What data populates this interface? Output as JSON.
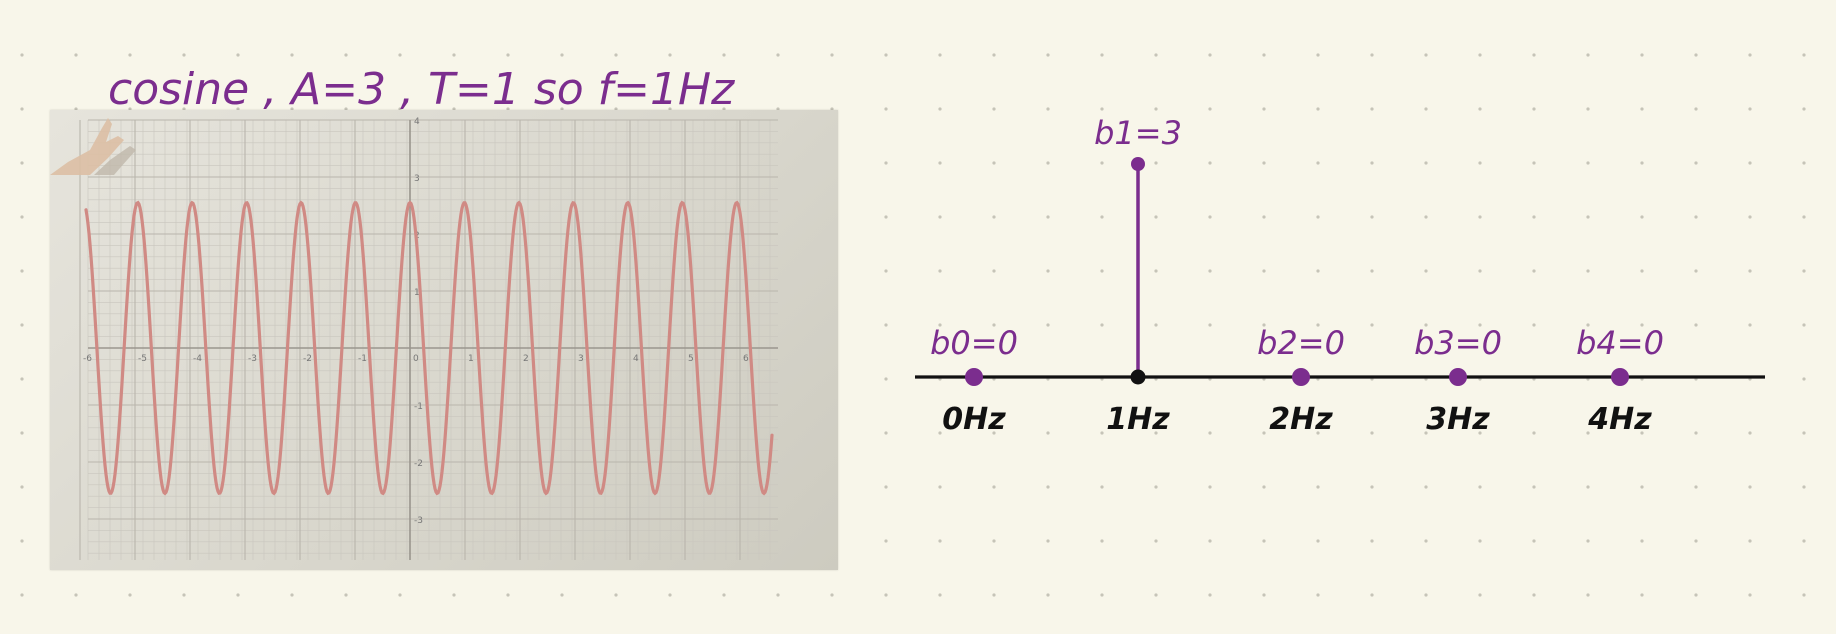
{
  "header_note": {
    "text": "cosine ,  A=3 , T=1  so  f=1Hz"
  },
  "photo": {
    "x_ticks": [
      "-6",
      "-5",
      "-4",
      "-3",
      "-2",
      "-1",
      "0",
      "1",
      "2",
      "3",
      "4",
      "5",
      "6"
    ],
    "y_ticks": [
      "4",
      "3",
      "2",
      "1",
      "-1",
      "-2",
      "-3"
    ],
    "curve_color": "#d08a84"
  },
  "spectrum": {
    "color": "#7b2d8e",
    "axis_color": "#111111",
    "stems": [
      {
        "coef_label": "b0=0",
        "freq_label": "0Hz",
        "value": 0
      },
      {
        "coef_label": "b1=3",
        "freq_label": "1Hz",
        "value": 3
      },
      {
        "coef_label": "b2=0",
        "freq_label": "2Hz",
        "value": 0
      },
      {
        "coef_label": "b3=0",
        "freq_label": "3Hz",
        "value": 0
      },
      {
        "coef_label": "b4=0",
        "freq_label": "4Hz",
        "value": 0
      }
    ]
  }
}
